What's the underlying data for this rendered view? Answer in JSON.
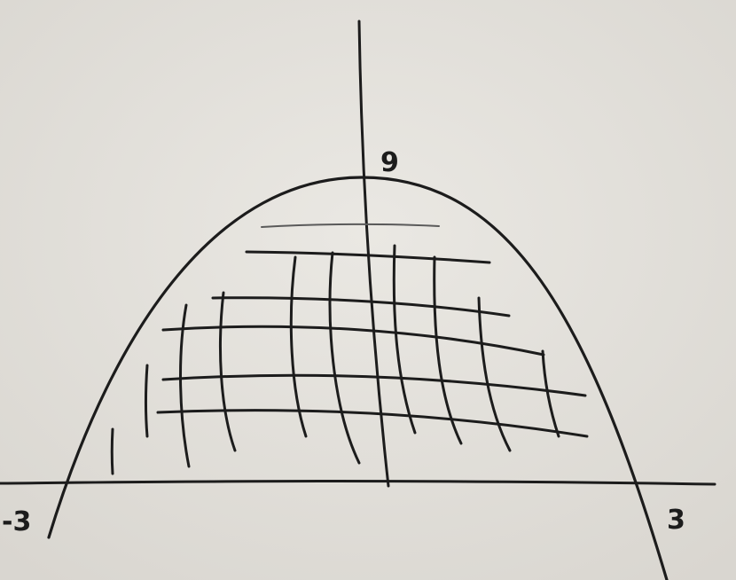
{
  "diagram": {
    "labels": {
      "y_intercept": "9",
      "x_left": "-3",
      "x_right": "3"
    },
    "style": {
      "paper_color": "#e6e4df",
      "ink_color": "#1c1c1c"
    }
  }
}
